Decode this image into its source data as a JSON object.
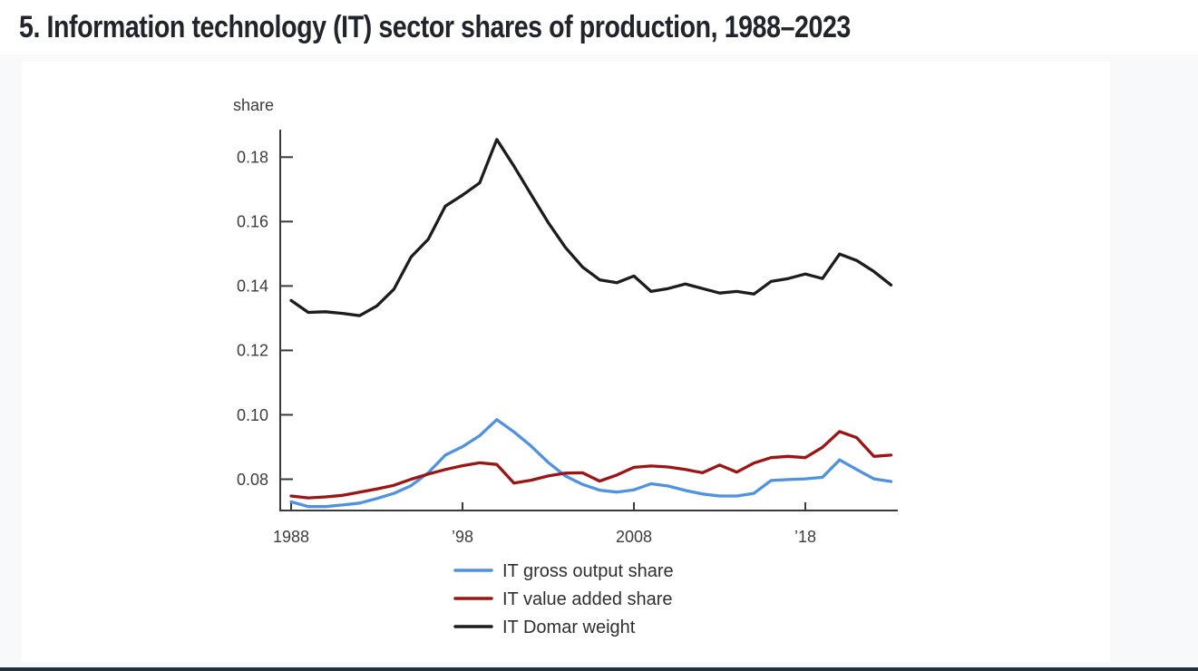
{
  "page": {
    "title": "5. Information technology (IT) sector shares of production, 1988–2023"
  },
  "colors": {
    "page_background": "#f7f9fa",
    "card_background": "#ffffff",
    "axis": "#3a3a3a",
    "tick_text": "#3d3d3d",
    "legend_text": "#2f2f2f",
    "title_text": "#21252b",
    "footer_edge": "#22303e"
  },
  "chart_data": {
    "type": "line",
    "title": "5. Information technology (IT) sector shares of production, 1988–2023",
    "xlabel": "",
    "ylabel": "share",
    "grid": false,
    "legend_position": "bottom",
    "xlim": [
      1988,
      2023.5
    ],
    "ylim": [
      0.07,
      0.188
    ],
    "x_tick_years": [
      1988,
      1998,
      2008,
      2018
    ],
    "x_tick_labels": [
      "1988",
      "’98",
      "2008",
      "’18"
    ],
    "y_ticks": [
      0.08,
      0.1,
      0.12,
      0.14,
      0.16,
      0.18
    ],
    "y_tick_labels": [
      "0.08",
      "0.10",
      "0.12",
      "0.14",
      "0.16",
      "0.18"
    ],
    "x": [
      1988,
      1989,
      1990,
      1991,
      1992,
      1993,
      1994,
      1995,
      1996,
      1997,
      1998,
      1999,
      2000,
      2001,
      2002,
      2003,
      2004,
      2005,
      2006,
      2007,
      2008,
      2009,
      2010,
      2011,
      2012,
      2013,
      2014,
      2015,
      2016,
      2017,
      2018,
      2019,
      2020,
      2021,
      2022,
      2023
    ],
    "series": [
      {
        "name": "IT gross output share",
        "color": "#4e92e2",
        "values": [
          0.073,
          0.0715,
          0.0715,
          0.072,
          0.0726,
          0.074,
          0.0756,
          0.078,
          0.082,
          0.0875,
          0.0901,
          0.0935,
          0.0985,
          0.0947,
          0.0903,
          0.0852,
          0.081,
          0.0784,
          0.0766,
          0.076,
          0.0767,
          0.0786,
          0.0779,
          0.0765,
          0.0754,
          0.0748,
          0.0748,
          0.0756,
          0.0796,
          0.0799,
          0.0801,
          0.0806,
          0.086,
          0.083,
          0.0801,
          0.0793
        ]
      },
      {
        "name": "IT value added share",
        "color": "#9c1515",
        "values": [
          0.0748,
          0.0742,
          0.0745,
          0.075,
          0.076,
          0.077,
          0.0781,
          0.08,
          0.0816,
          0.083,
          0.0842,
          0.0851,
          0.0846,
          0.0788,
          0.0797,
          0.081,
          0.0819,
          0.082,
          0.0794,
          0.0813,
          0.0837,
          0.0841,
          0.0838,
          0.083,
          0.082,
          0.0844,
          0.0822,
          0.085,
          0.0867,
          0.0871,
          0.0867,
          0.0899,
          0.0948,
          0.0929,
          0.0871,
          0.0875
        ]
      },
      {
        "name": "IT Domar weight",
        "color": "#1c1c1c",
        "values": [
          0.1355,
          0.1318,
          0.132,
          0.1315,
          0.1308,
          0.1338,
          0.139,
          0.149,
          0.1545,
          0.1648,
          0.1682,
          0.172,
          0.1855,
          0.1772,
          0.1684,
          0.1597,
          0.152,
          0.1459,
          0.1419,
          0.141,
          0.1431,
          0.1383,
          0.1392,
          0.1406,
          0.1392,
          0.1378,
          0.1383,
          0.1375,
          0.1414,
          0.1423,
          0.1437,
          0.1423,
          0.1499,
          0.1479,
          0.1445,
          0.1403
        ]
      }
    ]
  }
}
